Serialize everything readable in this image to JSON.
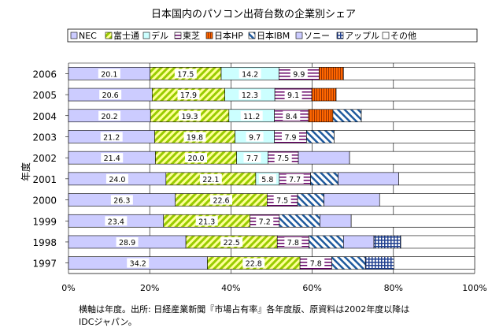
{
  "chart_data": {
    "type": "bar",
    "orientation": "horizontal",
    "stacked": "percent",
    "title": "日本国内のパソコン出荷台数の企業別シェア",
    "ylabel": "年度",
    "xlabel": "",
    "xlim": [
      0,
      100
    ],
    "x_ticks": [
      "0%",
      "20%",
      "40%",
      "60%",
      "80%",
      "100%"
    ],
    "grid": true,
    "legend_position": "top",
    "categories": [
      "2006",
      "2005",
      "2004",
      "2003",
      "2002",
      "2001",
      "2000",
      "1999",
      "1998",
      "1997"
    ],
    "series": [
      {
        "name": "NEC",
        "pattern": "solid-lavender",
        "values": [
          20.1,
          20.6,
          20.2,
          21.2,
          21.4,
          24.0,
          26.3,
          23.4,
          28.9,
          34.2
        ],
        "labels": [
          "20.1",
          "20.6",
          "20.2",
          "21.2",
          "21.4",
          "24.0",
          "26.3",
          "23.4",
          "28.9",
          "34.2"
        ]
      },
      {
        "name": "富士通",
        "pattern": "diagonal-yellow",
        "values": [
          17.5,
          17.9,
          19.3,
          19.8,
          20.0,
          22.1,
          22.6,
          21.3,
          22.5,
          22.8
        ],
        "labels": [
          "17.5",
          "17.9",
          "19.3",
          "19.8",
          "20.0",
          "22.1",
          "22.6",
          "21.3",
          "22.5",
          "22.8"
        ]
      },
      {
        "name": "デル",
        "pattern": "solid-cyan",
        "values": [
          14.2,
          12.3,
          11.2,
          9.7,
          7.7,
          5.8,
          0,
          0,
          0,
          0
        ],
        "labels": [
          "14.2",
          "12.3",
          "11.2",
          "9.7",
          "7.7",
          "5.8",
          "",
          "",
          "",
          ""
        ]
      },
      {
        "name": "東芝",
        "pattern": "horizontal-lines",
        "values": [
          9.9,
          9.1,
          8.4,
          7.9,
          7.5,
          7.7,
          7.5,
          7.2,
          7.8,
          7.8
        ],
        "labels": [
          "9.9",
          "9.1",
          "8.4",
          "7.9",
          "7.5",
          "7.7",
          "7.5",
          "7.2",
          "7.8",
          "7.8"
        ]
      },
      {
        "name": "日本HP",
        "pattern": "vertical-red",
        "values": [
          6.0,
          6.0,
          6.0,
          0,
          0,
          0,
          0,
          0,
          0,
          0
        ],
        "labels": [
          "",
          "",
          "",
          "",
          "",
          "",
          "",
          "",
          "",
          ""
        ]
      },
      {
        "name": "日本IBM",
        "pattern": "diagonal-blue",
        "values": [
          0,
          0,
          7.0,
          6.8,
          0,
          6.8,
          6.5,
          10.0,
          8.5,
          8.3
        ],
        "labels": [
          "",
          "",
          "",
          "",
          "",
          "",
          "",
          "",
          "",
          ""
        ]
      },
      {
        "name": "ソニー",
        "pattern": "solid-lavender",
        "values": [
          0,
          0,
          0,
          0,
          12.6,
          14.9,
          13.7,
          7.7,
          7.5,
          0
        ],
        "labels": [
          "",
          "",
          "",
          "",
          "",
          "",
          "",
          "",
          "",
          ""
        ]
      },
      {
        "name": "アップル",
        "pattern": "grid-blue",
        "values": [
          0,
          0,
          0,
          0,
          0,
          0,
          0,
          0,
          6.6,
          7.0
        ],
        "labels": [
          "",
          "",
          "",
          "",
          "",
          "",
          "",
          "",
          "",
          ""
        ]
      },
      {
        "name": "その他",
        "pattern": "solid-white",
        "values": [
          32.3,
          34.1,
          27.9,
          34.6,
          30.8,
          18.7,
          23.4,
          30.4,
          18.2,
          19.9
        ],
        "labels": [
          "",
          "",
          "",
          "",
          "",
          "",
          "",
          "",
          "",
          ""
        ]
      }
    ]
  },
  "note": {
    "line1": "横軸は年度。出所: 日経産業新聞『市場占有率』各年度版、原資料は2002年度以降は",
    "line2": "IDCジャパン。"
  }
}
